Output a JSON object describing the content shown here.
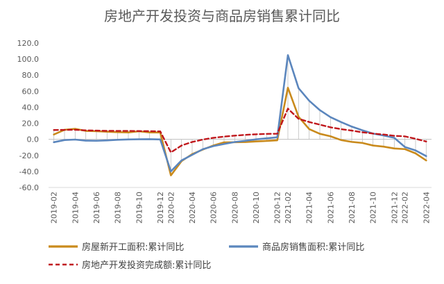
{
  "chart_data": {
    "type": "line",
    "title": "房地产开发投资与商品房销售累计同比",
    "xlabel": "",
    "ylabel": "",
    "ylim": [
      -60,
      120
    ],
    "yticks": [
      "120.0",
      "100.0",
      "80.0",
      "60.0",
      "40.0",
      "20.0",
      "0.0",
      "-20.0",
      "-40.0",
      "-60.0"
    ],
    "ytick_values": [
      120,
      100,
      80,
      60,
      40,
      20,
      0,
      -20,
      -40,
      -60
    ],
    "grid": false,
    "legend_position": "bottom",
    "categories": [
      "2019-02",
      "2019-03",
      "2019-04",
      "2019-05",
      "2019-06",
      "2019-07",
      "2019-08",
      "2019-09",
      "2019-10",
      "2019-11",
      "2019-12",
      "2020-02",
      "2020-03",
      "2020-04",
      "2020-05",
      "2020-06",
      "2020-07",
      "2020-08",
      "2020-09",
      "2020-10",
      "2020-11",
      "2020-12",
      "2021-02",
      "2021-03",
      "2021-04",
      "2021-05",
      "2021-06",
      "2021-07",
      "2021-08",
      "2021-09",
      "2021-10",
      "2021-11",
      "2021-12",
      "2022-02",
      "2022-03",
      "2022-04"
    ],
    "x_tick_labels": [
      "2019-02",
      "2019-04",
      "2019-06",
      "2019-08",
      "2019-10",
      "2019-12",
      "2020-02",
      "2020-04",
      "2020-06",
      "2020-08",
      "2020-10",
      "2020-12",
      "2021-02",
      "2021-04",
      "2021-06",
      "2021-08",
      "2021-10",
      "2021-12",
      "2022-02",
      "2022-04"
    ],
    "series": [
      {
        "name": "房屋新开工面积:累计同比",
        "color": "#C98A1C",
        "dash": "solid",
        "values": [
          6.0,
          11.9,
          13.1,
          10.5,
          10.1,
          9.5,
          8.9,
          8.6,
          10.0,
          8.6,
          8.5,
          -44.9,
          -27.2,
          -18.4,
          -12.8,
          -7.6,
          -3.8,
          -3.6,
          -3.4,
          -2.6,
          -2.0,
          -1.2,
          64.3,
          28.2,
          12.8,
          6.9,
          3.8,
          -0.9,
          -3.2,
          -4.5,
          -7.7,
          -9.1,
          -11.4,
          -12.2,
          -17.5,
          -26.3
        ]
      },
      {
        "name": "商品房销售面积:累计同比",
        "color": "#5B86BD",
        "dash": "solid",
        "values": [
          -3.6,
          -0.9,
          -0.3,
          -1.6,
          -1.8,
          -1.3,
          -0.6,
          -0.1,
          0.1,
          0.2,
          -0.1,
          -39.9,
          -26.3,
          -19.3,
          -12.3,
          -8.4,
          -5.8,
          -3.3,
          -1.8,
          0.0,
          1.3,
          2.6,
          104.9,
          63.8,
          48.1,
          36.4,
          27.7,
          21.5,
          15.9,
          11.3,
          7.2,
          4.8,
          1.9,
          -9.6,
          -13.8,
          -20.9
        ]
      },
      {
        "name": "房地产开发投资完成额:累计同比",
        "color": "#C0171C",
        "dash": "dashed",
        "values": [
          11.6,
          11.8,
          11.9,
          11.2,
          10.9,
          10.6,
          10.5,
          10.5,
          10.3,
          10.2,
          9.9,
          -16.3,
          -7.7,
          -3.3,
          -0.3,
          1.9,
          3.4,
          4.6,
          5.6,
          6.3,
          6.8,
          7.0,
          38.3,
          25.6,
          21.6,
          18.3,
          15.0,
          12.7,
          10.9,
          8.8,
          7.2,
          6.0,
          4.4,
          3.7,
          0.7,
          -2.7
        ]
      }
    ]
  }
}
